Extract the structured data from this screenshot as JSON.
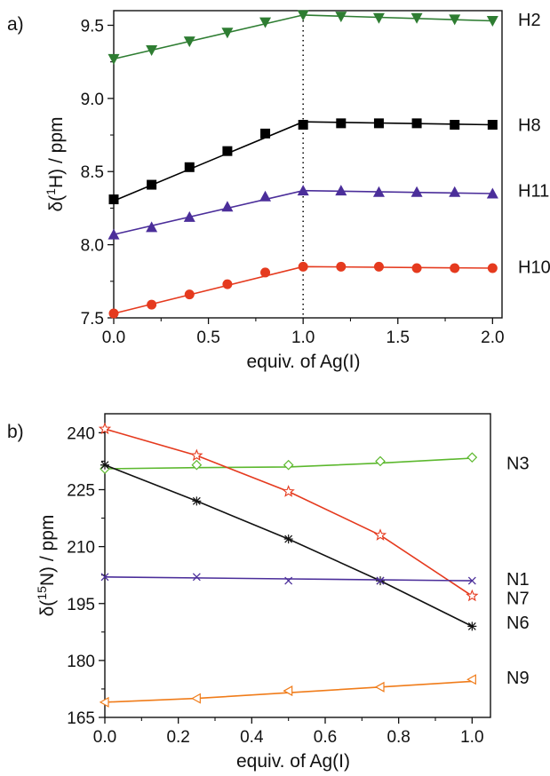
{
  "chart_data": [
    {
      "type": "line",
      "panel_label": "a)",
      "xlabel": "equiv. of Ag(I)",
      "ylabel_parts": [
        "δ(",
        "1",
        "H) / ppm"
      ],
      "xlim": [
        0,
        2.05
      ],
      "ylim": [
        7.5,
        9.6
      ],
      "xticks": [
        0.0,
        0.5,
        1.0,
        1.5,
        2.0
      ],
      "xtick_labels": [
        "0.0",
        "0.5",
        "1.0",
        "1.5",
        "2.0"
      ],
      "yticks": [
        7.5,
        8.0,
        8.5,
        9.0,
        9.5
      ],
      "ytick_labels": [
        "7.5",
        "8.0",
        "8.5",
        "9.0",
        "9.5"
      ],
      "reference_line": {
        "x": 1.0,
        "style": "dotted"
      },
      "series": [
        {
          "name": "H2",
          "color": "#2e7d32",
          "marker": "triangle-down",
          "x": [
            0,
            0.2,
            0.4,
            0.6,
            0.8,
            1.0,
            1.2,
            1.4,
            1.6,
            1.8,
            2.0
          ],
          "y": [
            9.27,
            9.33,
            9.39,
            9.45,
            9.52,
            9.57,
            9.56,
            9.55,
            9.55,
            9.54,
            9.53
          ],
          "fit": [
            [
              0,
              9.27
            ],
            [
              1.0,
              9.57
            ],
            [
              2.0,
              9.53
            ]
          ]
        },
        {
          "name": "H8",
          "color": "#000000",
          "marker": "square",
          "x": [
            0,
            0.2,
            0.4,
            0.6,
            0.8,
            1.0,
            1.2,
            1.4,
            1.6,
            1.8,
            2.0
          ],
          "y": [
            8.31,
            8.41,
            8.53,
            8.64,
            8.76,
            8.82,
            8.83,
            8.83,
            8.83,
            8.82,
            8.82
          ],
          "fit": [
            [
              0,
              8.3
            ],
            [
              1.0,
              8.84
            ],
            [
              2.0,
              8.82
            ]
          ]
        },
        {
          "name": "H11",
          "color": "#4b2e9a",
          "marker": "triangle-up",
          "x": [
            0,
            0.2,
            0.4,
            0.6,
            0.8,
            1.0,
            1.2,
            1.4,
            1.6,
            1.8,
            2.0
          ],
          "y": [
            8.07,
            8.12,
            8.19,
            8.26,
            8.33,
            8.37,
            8.37,
            8.36,
            8.36,
            8.36,
            8.35
          ],
          "fit": [
            [
              0,
              8.07
            ],
            [
              1.0,
              8.37
            ],
            [
              2.0,
              8.35
            ]
          ]
        },
        {
          "name": "H10",
          "color": "#e53a1e",
          "marker": "circle",
          "x": [
            0,
            0.2,
            0.4,
            0.6,
            0.8,
            1.0,
            1.2,
            1.4,
            1.6,
            1.8,
            2.0
          ],
          "y": [
            7.53,
            7.59,
            7.66,
            7.73,
            7.81,
            7.85,
            7.85,
            7.85,
            7.84,
            7.84,
            7.84
          ],
          "fit": [
            [
              0,
              7.53
            ],
            [
              1.0,
              7.85
            ],
            [
              2.0,
              7.84
            ]
          ]
        }
      ]
    },
    {
      "type": "line",
      "panel_label": "b)",
      "xlabel": "equiv. of Ag(I)",
      "ylabel_parts": [
        "δ(",
        "15",
        "N) / ppm"
      ],
      "xlim": [
        0,
        1.05
      ],
      "ylim": [
        165,
        245
      ],
      "xticks": [
        0.0,
        0.2,
        0.4,
        0.6,
        0.8,
        1.0
      ],
      "xtick_labels": [
        "0.0",
        "0.2",
        "0.4",
        "0.6",
        "0.8",
        "1.0"
      ],
      "yticks": [
        165,
        180,
        195,
        210,
        225,
        240
      ],
      "ytick_labels": [
        "165",
        "180",
        "195",
        "210",
        "225",
        "240"
      ],
      "series": [
        {
          "name": "N3",
          "color": "#5cb82e",
          "marker": "diamond-open",
          "x": [
            0,
            0.25,
            0.5,
            0.75,
            1.0
          ],
          "y": [
            230.5,
            231.5,
            231.5,
            232.5,
            233.5
          ],
          "fit": [
            [
              0,
              230.5
            ],
            [
              0.25,
              230.8
            ],
            [
              0.5,
              231.0
            ],
            [
              0.75,
              232.0
            ],
            [
              1.0,
              233.3
            ]
          ]
        },
        {
          "name": "N7",
          "color": "#e53a1e",
          "marker": "star-open",
          "x": [
            0,
            0.25,
            0.5,
            0.75,
            1.0
          ],
          "y": [
            241,
            234,
            224.5,
            213,
            197
          ],
          "fit": [
            [
              0,
              241
            ],
            [
              0.25,
              234
            ],
            [
              0.5,
              224.5
            ],
            [
              0.75,
              213
            ],
            [
              1.0,
              197
            ]
          ]
        },
        {
          "name": "N6",
          "color": "#111111",
          "marker": "asterisk",
          "x": [
            0,
            0.25,
            0.5,
            0.75,
            1.0
          ],
          "y": [
            231.5,
            222,
            212,
            201,
            189
          ],
          "fit": [
            [
              0,
              231.5
            ],
            [
              0.25,
              222
            ],
            [
              0.5,
              212
            ],
            [
              0.75,
              201
            ],
            [
              1.0,
              189
            ]
          ]
        },
        {
          "name": "N1",
          "color": "#4b2e9a",
          "marker": "x",
          "x": [
            0,
            0.25,
            0.5,
            0.75,
            1.0
          ],
          "y": [
            202,
            202,
            201,
            201,
            201
          ],
          "fit": [
            [
              0,
              202
            ],
            [
              0.5,
              201.5
            ],
            [
              1.0,
              201
            ]
          ]
        },
        {
          "name": "N9",
          "color": "#f07c1a",
          "marker": "triangle-left-open",
          "x": [
            0,
            0.25,
            0.5,
            0.75,
            1.0
          ],
          "y": [
            169,
            170,
            172,
            173,
            175
          ],
          "fit": [
            [
              0,
              169
            ],
            [
              0.25,
              170
            ],
            [
              0.5,
              171.5
            ],
            [
              0.75,
              173
            ],
            [
              1.0,
              174.5
            ]
          ]
        }
      ]
    }
  ]
}
